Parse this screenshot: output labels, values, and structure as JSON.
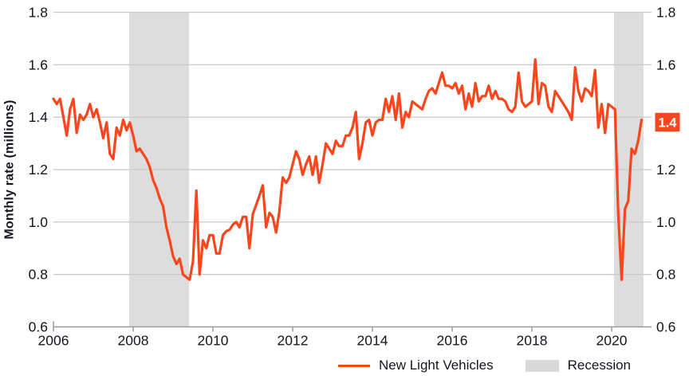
{
  "chart_data": {
    "type": "line",
    "title": "",
    "ylabel": "Monthly rate (millions)",
    "xlabel": "",
    "xlim": [
      2006,
      2021
    ],
    "ylim": [
      0.6,
      1.8
    ],
    "x_ticks": [
      2006,
      2008,
      2010,
      2012,
      2014,
      2016,
      2018,
      2020
    ],
    "y_ticks": [
      0.6,
      0.8,
      1.0,
      1.2,
      1.4,
      1.6,
      1.8
    ],
    "grid": "horizontal",
    "legend_position": "bottom",
    "current_value_label": "1.4",
    "recessions": [
      {
        "start": 2007.9,
        "end": 2009.4
      },
      {
        "start": 2020.06,
        "end": 2020.8
      }
    ],
    "series": [
      {
        "name": "New Light Vehicles",
        "frequency": "monthly",
        "start_year": 2006,
        "start_month": 1,
        "values": [
          1.47,
          1.45,
          1.47,
          1.4,
          1.33,
          1.43,
          1.47,
          1.34,
          1.41,
          1.39,
          1.41,
          1.45,
          1.4,
          1.43,
          1.38,
          1.32,
          1.38,
          1.26,
          1.24,
          1.36,
          1.33,
          1.39,
          1.35,
          1.38,
          1.33,
          1.27,
          1.28,
          1.26,
          1.24,
          1.21,
          1.16,
          1.13,
          1.09,
          1.06,
          0.98,
          0.93,
          0.87,
          0.84,
          0.86,
          0.8,
          0.79,
          0.78,
          0.85,
          1.12,
          0.8,
          0.93,
          0.9,
          0.95,
          0.95,
          0.88,
          0.88,
          0.95,
          0.965,
          0.97,
          0.99,
          1.0,
          0.98,
          1.02,
          1.02,
          0.9,
          1.03,
          1.065,
          1.1,
          1.14,
          0.98,
          1.035,
          1.02,
          0.96,
          1.04,
          1.17,
          1.15,
          1.17,
          1.22,
          1.27,
          1.24,
          1.18,
          1.22,
          1.25,
          1.18,
          1.25,
          1.15,
          1.22,
          1.3,
          1.28,
          1.26,
          1.31,
          1.29,
          1.29,
          1.33,
          1.33,
          1.36,
          1.42,
          1.24,
          1.3,
          1.38,
          1.39,
          1.33,
          1.38,
          1.39,
          1.39,
          1.47,
          1.42,
          1.48,
          1.39,
          1.49,
          1.36,
          1.42,
          1.4,
          1.46,
          1.45,
          1.44,
          1.43,
          1.47,
          1.5,
          1.51,
          1.49,
          1.53,
          1.57,
          1.52,
          1.52,
          1.51,
          1.53,
          1.49,
          1.52,
          1.43,
          1.49,
          1.44,
          1.53,
          1.46,
          1.48,
          1.48,
          1.52,
          1.47,
          1.5,
          1.47,
          1.47,
          1.46,
          1.43,
          1.42,
          1.44,
          1.57,
          1.46,
          1.44,
          1.45,
          1.46,
          1.62,
          1.45,
          1.53,
          1.52,
          1.44,
          1.42,
          1.5,
          1.48,
          1.46,
          1.44,
          1.42,
          1.39,
          1.59,
          1.5,
          1.46,
          1.51,
          1.5,
          1.48,
          1.58,
          1.36,
          1.45,
          1.34,
          1.45,
          1.44,
          1.43,
          1.03,
          0.78,
          1.05,
          1.08,
          1.28,
          1.26,
          1.31,
          1.39
        ]
      }
    ],
    "legend": [
      {
        "label": "New Light Vehicles",
        "swatch": "line",
        "color": "#f9461c"
      },
      {
        "label": "Recession",
        "swatch": "rect",
        "color": "#d9d9d9"
      }
    ]
  },
  "colors": {
    "line": "#f9461c",
    "recession_band": "#dddddd",
    "gridline": "#cbcbcb",
    "axis_line": "#9a9a9a",
    "text": "#15151f",
    "value_box_bg": "#f9461c",
    "value_box_text": "#ffffff"
  }
}
